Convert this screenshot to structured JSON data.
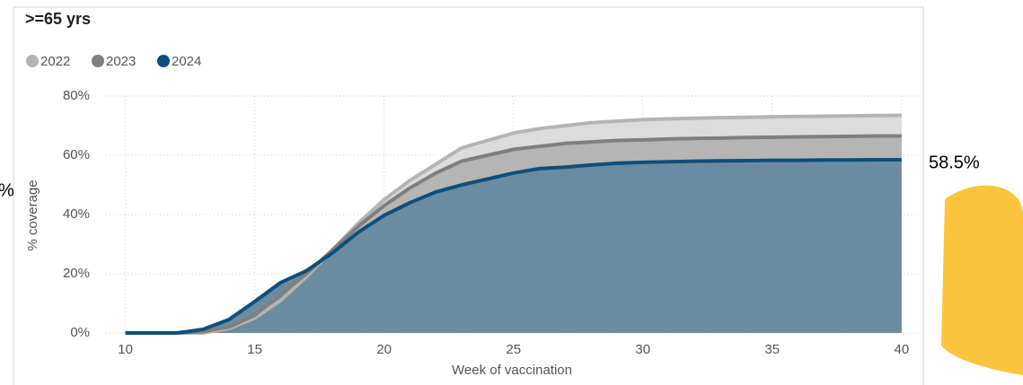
{
  "chart_data": {
    "type": "area-line",
    "title": ">=65 yrs",
    "x_label": "Week of vaccination",
    "y_label": "% coverage",
    "annotation": "58.5%",
    "left_fragment": "%",
    "x": [
      10,
      11,
      12,
      13,
      14,
      15,
      16,
      17,
      18,
      19,
      20,
      21,
      22,
      23,
      24,
      25,
      26,
      27,
      28,
      29,
      30,
      31,
      32,
      33,
      34,
      35,
      36,
      37,
      38,
      39,
      40
    ],
    "series": [
      {
        "name": "2022",
        "color": "#b4b4b4",
        "area_color": "#dcdcdc",
        "values": [
          0,
          0,
          0,
          0,
          1.5,
          5,
          11,
          19,
          28,
          37,
          45,
          51.5,
          57,
          62.5,
          65,
          67.5,
          69,
          70,
          71,
          71.5,
          72,
          72.3,
          72.5,
          72.7,
          72.8,
          73,
          73.1,
          73.2,
          73.3,
          73.4,
          73.5
        ]
      },
      {
        "name": "2023",
        "color": "#7f7f7f",
        "area_color": "#b5b5b5",
        "values": [
          0,
          0,
          0,
          0.5,
          2,
          6,
          13,
          20,
          28,
          36,
          43,
          49,
          54,
          58,
          60,
          62,
          63,
          64,
          64.5,
          65,
          65.2,
          65.5,
          65.7,
          65.8,
          66,
          66.1,
          66.2,
          66.3,
          66.4,
          66.5,
          66.5
        ]
      },
      {
        "name": "2024",
        "color": "#0e4f7b",
        "area_color": "#6b8ba0",
        "values": [
          0,
          0,
          0,
          1.2,
          4.5,
          10.6,
          17,
          21,
          27,
          34,
          39.7,
          44,
          47.6,
          50,
          52,
          54,
          55.5,
          56,
          56.7,
          57.3,
          57.6,
          57.8,
          58,
          58.1,
          58.2,
          58.3,
          58.3,
          58.4,
          58.4,
          58.5,
          58.5
        ]
      }
    ],
    "xlim": [
      9.25,
      40.7
    ],
    "xticks": [
      10,
      15,
      20,
      25,
      30,
      35,
      40
    ],
    "ylim": [
      0,
      80
    ],
    "yticks": [
      {
        "value": 0,
        "label": "0%"
      },
      {
        "value": 20,
        "label": "20%"
      },
      {
        "value": 40,
        "label": "40%"
      },
      {
        "value": 60,
        "label": "60%"
      },
      {
        "value": 80,
        "label": "80%"
      }
    ],
    "grid": true
  }
}
